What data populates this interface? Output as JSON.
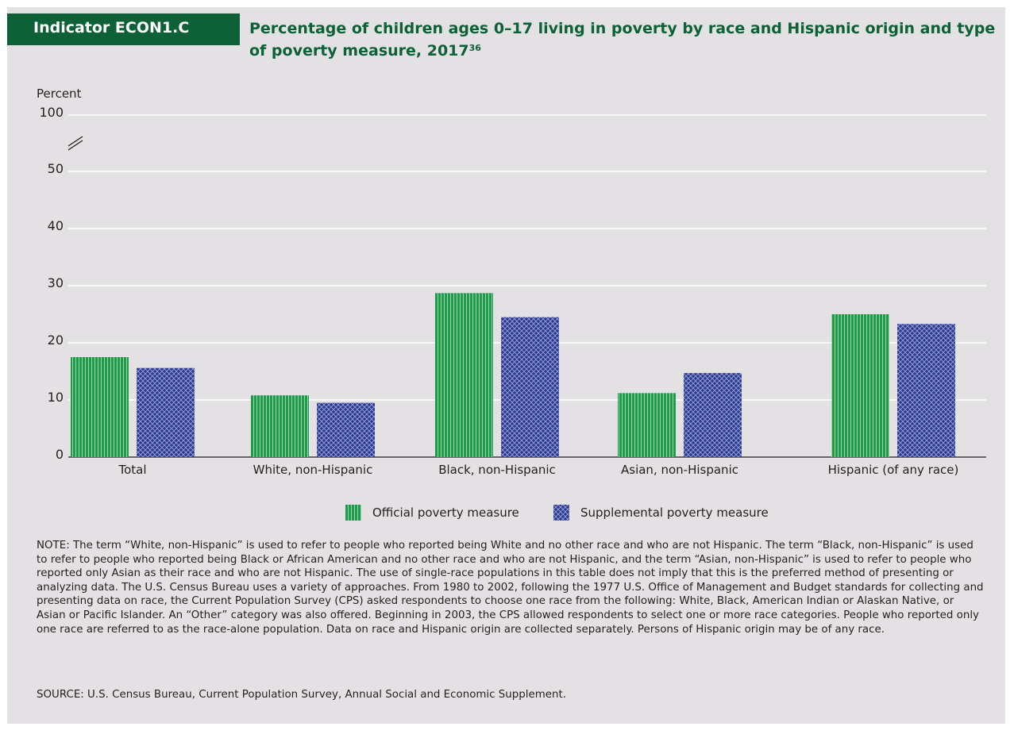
{
  "header": {
    "indicator": "Indicator ECON1.C",
    "title": "Percentage of children ages 0–17 living in poverty by race and Hispanic origin and type of poverty measure, 2017",
    "title_footnote": "36"
  },
  "colors": {
    "official": "#1f9b4a",
    "supplemental": "#2b3990",
    "panel_bg": "#e4e1e4",
    "badge_bg": "#0d6136"
  },
  "chart_data": {
    "type": "bar",
    "ylabel": "Percent",
    "ytick_labels": [
      "0",
      "10",
      "20",
      "30",
      "40",
      "50",
      "100"
    ],
    "y_ticks": [
      0,
      10,
      20,
      30,
      40,
      50,
      100
    ],
    "axis_break": "between 50 and 100",
    "ylim": [
      0,
      100
    ],
    "grid": true,
    "categories": [
      "Total",
      "White, non-Hispanic",
      "Black, non-Hispanic",
      "Asian, non-Hispanic",
      "Hispanic (of any race)"
    ],
    "series": [
      {
        "name": "Official poverty measure",
        "values": [
          17.5,
          10.8,
          28.7,
          11.2,
          25.0
        ]
      },
      {
        "name": "Supplemental poverty measure",
        "values": [
          15.6,
          9.5,
          24.5,
          14.7,
          23.3
        ]
      }
    ],
    "legend_position": "bottom"
  },
  "footer": {
    "note": "NOTE: The term “White, non-Hispanic” is used to refer to people who reported being White and no other race and who are not Hispanic. The term “Black, non-Hispanic” is used to refer to people who reported being Black or African American and no other race and who are not Hispanic, and the term “Asian, non-Hispanic” is used to refer to people who reported only Asian as their race and who are not Hispanic. The use of single-race populations in this table does not imply that this is the preferred method of presenting or analyzing data. The U.S. Census Bureau uses a variety of approaches.  From 1980 to 2002, following the 1977 U.S. Office of Management and Budget standards for collecting and presenting data on race, the Current Population Survey (CPS) asked respondents to choose one race from the following: White, Black, American Indian or Alaskan Native, or Asian or Pacific Islander. An “Other” category was also offered. Beginning in 2003, the CPS allowed respondents to select one or more race categories. People who reported only one race are referred to as the race-alone population. Data on race and Hispanic origin are collected separately. Persons of Hispanic origin may be of any race.",
    "source": "SOURCE: U.S. Census Bureau, Current Population Survey, Annual Social and Economic Supplement."
  }
}
